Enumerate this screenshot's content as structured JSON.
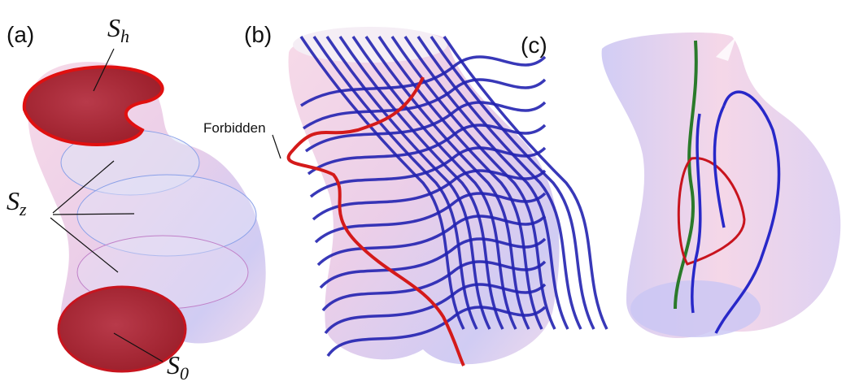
{
  "panels": [
    {
      "label": "(a)",
      "annotations": [
        {
          "base": "S",
          "sub": "h"
        },
        {
          "base": "S",
          "sub": "z"
        },
        {
          "base": "S",
          "sub": "0"
        }
      ]
    },
    {
      "label": "(b)",
      "annotations": [
        "Forbidden"
      ]
    },
    {
      "label": "(c)"
    }
  ]
}
